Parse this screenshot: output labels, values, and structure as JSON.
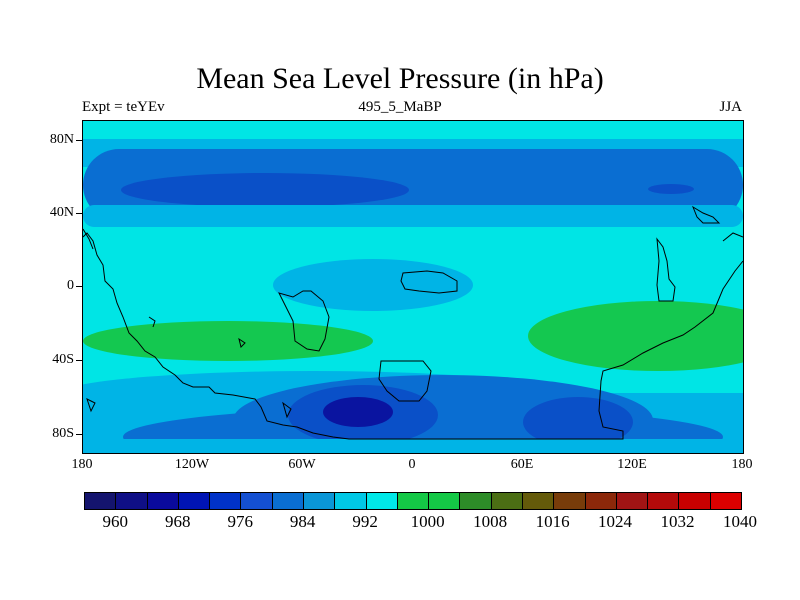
{
  "title": "Mean Sea Level Pressure (in hPa)",
  "left_label": "Expt = teYEv",
  "center_label": "495_5_MaBP",
  "right_label": "JJA",
  "lat_ticks": [
    "80N",
    "40N",
    "0",
    "40S",
    "80S"
  ],
  "lon_ticks": [
    "180",
    "120W",
    "60W",
    "0",
    "60E",
    "120E",
    "180"
  ],
  "colorbar": {
    "colors": [
      "#14146e",
      "#0f0f86",
      "#0a0a9c",
      "#0014b4",
      "#0032c8",
      "#1450d2",
      "#0a6ed2",
      "#0a96d7",
      "#00c8e6",
      "#00e8e8",
      "#14c846",
      "#14c846",
      "#2d8c28",
      "#4b6e14",
      "#645a0a",
      "#783c0a",
      "#8c280a",
      "#a01414",
      "#b40a0a",
      "#c80000",
      "#dc0000"
    ],
    "labels": [
      "960",
      "968",
      "976",
      "984",
      "992",
      "1000",
      "1008",
      "1016",
      "1024",
      "1032",
      "1040"
    ]
  },
  "map_colors": {
    "cyan": "#00e5e5",
    "light_blue": "#00b4e6",
    "mid_blue": "#0a6ed2",
    "blue": "#0050c8",
    "dark_blue": "#0a14a0",
    "green": "#14c850"
  }
}
